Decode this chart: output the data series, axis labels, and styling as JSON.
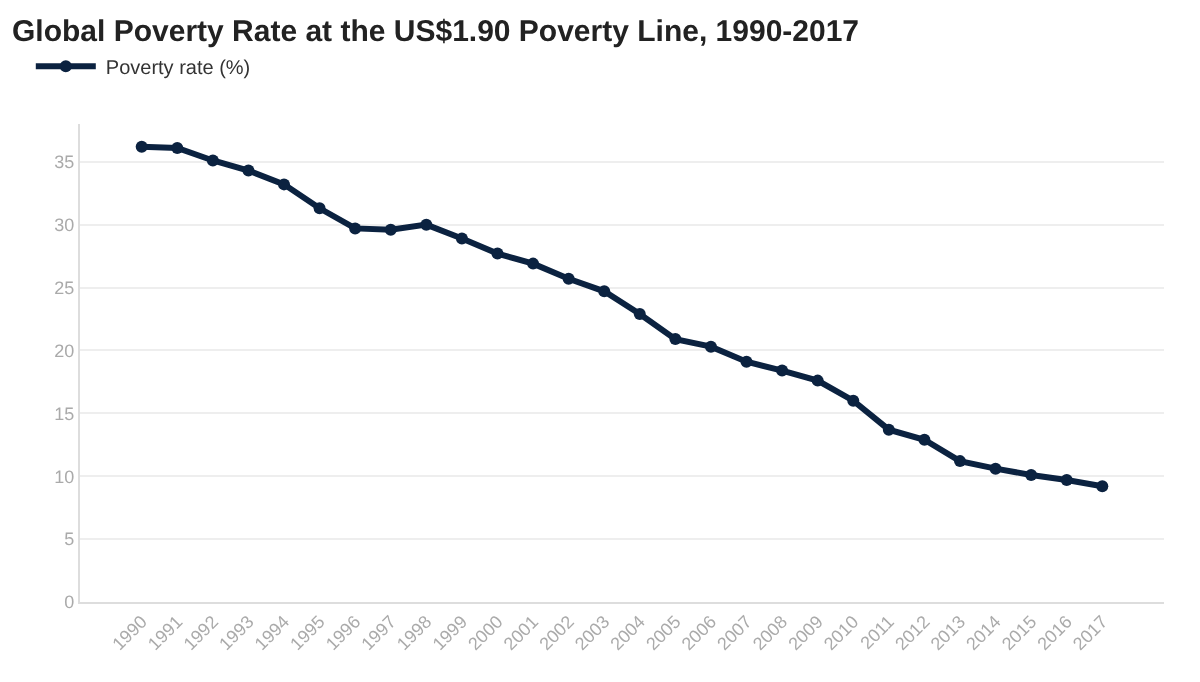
{
  "chart_data": {
    "type": "line",
    "title": "Global Poverty Rate at the US$1.90 Poverty Line, 1990-2017",
    "categories": [
      "1990",
      "1991",
      "1992",
      "1993",
      "1994",
      "1995",
      "1996",
      "1997",
      "1998",
      "1999",
      "2000",
      "2001",
      "2002",
      "2003",
      "2004",
      "2005",
      "2006",
      "2007",
      "2008",
      "2009",
      "2010",
      "2011",
      "2012",
      "2013",
      "2014",
      "2015",
      "2016",
      "2017"
    ],
    "series": [
      {
        "name": "Poverty rate (%)",
        "color": "#0b2240",
        "values": [
          36.2,
          36.1,
          35.1,
          34.3,
          33.2,
          31.3,
          29.7,
          29.6,
          30.0,
          28.9,
          27.7,
          26.9,
          25.7,
          24.7,
          22.9,
          20.9,
          20.3,
          19.1,
          18.4,
          17.6,
          16.0,
          13.7,
          12.9,
          11.2,
          10.6,
          10.1,
          9.7,
          9.2
        ]
      }
    ],
    "ylim": [
      0,
      38
    ],
    "yticks": [
      0,
      5,
      10,
      15,
      20,
      25,
      30,
      35
    ],
    "grid": "y",
    "legend": "top left",
    "marker": "circle",
    "line_style": "solid"
  }
}
